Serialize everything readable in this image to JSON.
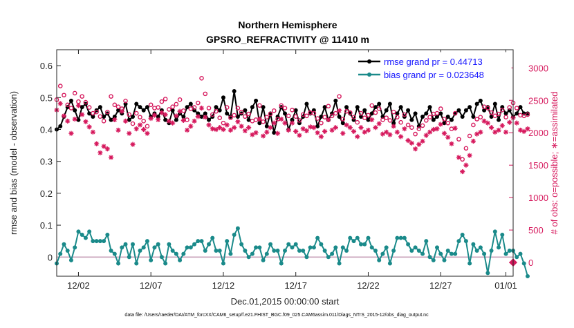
{
  "chart_data": {
    "type": "line",
    "title": "Northern Hemisphere",
    "subtitle": "GPSRO_REFRACTIVITY @ 11410 m",
    "xlabel": "Dec.01,2015 00:00:00 start",
    "ylabel": "rmse and bias (model - observation)",
    "y2label": "# of obs: o=possible; ∗=assimilated",
    "xlim": [
      0,
      31.5
    ],
    "ylim": [
      -0.06,
      0.65
    ],
    "y2lim": [
      -212,
      3280
    ],
    "x_ticks": [
      1.5,
      6.5,
      11.5,
      16.5,
      21.5,
      26.5,
      31.0
    ],
    "x_tick_labels": [
      "12/02",
      "12/07",
      "12/12",
      "12/17",
      "12/22",
      "12/27",
      "01/01"
    ],
    "y_ticks": [
      0,
      0.1,
      0.2,
      0.3,
      0.4,
      0.5,
      0.6
    ],
    "y_tick_labels": [
      "0",
      "0.1",
      "0.2",
      "0.3",
      "0.4",
      "0.5",
      "0.6"
    ],
    "y2_ticks": [
      0,
      500,
      1000,
      1500,
      2000,
      2500,
      3000
    ],
    "y2_tick_labels": [
      "0",
      "500",
      "1000",
      "1500",
      "2000",
      "2500",
      "3000"
    ],
    "series": [
      {
        "name": "rmse grand pr = 0.44713",
        "axis": "left",
        "color": "#000000",
        "marker": "dot",
        "values": [
          0.4,
          0.41,
          0.44,
          0.47,
          0.49,
          0.46,
          0.43,
          0.47,
          0.48,
          0.45,
          0.44,
          0.46,
          0.47,
          0.44,
          0.45,
          0.43,
          0.44,
          0.46,
          0.45,
          0.48,
          0.43,
          0.44,
          0.48,
          0.47,
          0.46,
          0.47,
          0.44,
          0.45,
          0.44,
          0.46,
          0.43,
          0.42,
          0.46,
          0.43,
          0.45,
          0.44,
          0.47,
          0.48,
          0.46,
          0.45,
          0.44,
          0.45,
          0.43,
          0.44,
          0.47,
          0.46,
          0.5,
          0.45,
          0.44,
          0.52,
          0.44,
          0.45,
          0.46,
          0.43,
          0.47,
          0.49,
          0.42,
          0.47,
          0.41,
          0.45,
          0.39,
          0.44,
          0.47,
          0.45,
          0.4,
          0.43,
          0.46,
          0.42,
          0.44,
          0.48,
          0.45,
          0.46,
          0.41,
          0.44,
          0.47,
          0.43,
          0.45,
          0.49,
          0.44,
          0.42,
          0.47,
          0.45,
          0.43,
          0.47,
          0.44,
          0.46,
          0.43,
          0.45,
          0.47,
          0.48,
          0.44,
          0.46,
          0.48,
          0.42,
          0.45,
          0.47,
          0.44,
          0.46,
          0.43,
          0.45,
          0.41,
          0.44,
          0.45,
          0.47,
          0.43,
          0.44,
          0.45,
          0.42,
          0.44,
          0.43,
          0.45,
          0.46,
          0.44,
          0.46,
          0.47,
          0.44,
          0.48,
          0.49,
          0.46,
          0.47,
          0.44,
          0.48,
          0.43,
          0.47,
          0.45,
          0.46,
          0.44,
          0.45,
          0.47,
          0.45,
          0.45
        ],
        "x_start": 0.0,
        "x_step": 0.25
      },
      {
        "name": "bias grand pr = 0.023648",
        "axis": "left",
        "color": "#1a8a8a",
        "marker": "dot",
        "values": [
          -0.02,
          0.01,
          0.04,
          0.02,
          -0.01,
          0.03,
          0.08,
          0.07,
          0.06,
          0.08,
          0.05,
          0.05,
          0.05,
          0.05,
          0.07,
          0.02,
          0.01,
          -0.02,
          0.03,
          0.04,
          0.0,
          0.04,
          -0.02,
          0.02,
          0.03,
          0.05,
          -0.01,
          0.03,
          0.04,
          0.0,
          -0.02,
          0.04,
          0.02,
          0.01,
          -0.01,
          0.01,
          0.03,
          0.03,
          0.04,
          0.05,
          0.05,
          0.02,
          0.04,
          0.06,
          0.02,
          0.02,
          -0.02,
          0.05,
          0.01,
          0.07,
          0.09,
          0.04,
          0.02,
          0.0,
          0.01,
          0.03,
          0.03,
          -0.01,
          0.01,
          0.04,
          0.02,
          0.02,
          -0.02,
          0.02,
          0.04,
          0.03,
          0.04,
          0.02,
          0.02,
          0.0,
          0.03,
          0.03,
          0.06,
          0.04,
          0.02,
          0.0,
          0.01,
          0.03,
          -0.02,
          0.03,
          0.02,
          0.06,
          0.05,
          0.06,
          0.04,
          0.04,
          0.06,
          0.03,
          0.02,
          -0.01,
          0.01,
          0.03,
          -0.02,
          0.02,
          0.06,
          0.06,
          0.06,
          0.04,
          0.02,
          0.03,
          0.02,
          0.01,
          0.05,
          0.0,
          -0.01,
          0.03,
          0.01,
          -0.01,
          0.02,
          0.01,
          0.01,
          0.05,
          0.07,
          0.05,
          -0.02,
          0.04,
          0.02,
          0.03,
          0.01,
          -0.05,
          0.02,
          0.08,
          0.03,
          0.07,
          0.01,
          0.02,
          0.02,
          0.0,
          0.01,
          -0.02,
          -0.06
        ],
        "x_start": 0.0,
        "x_step": 0.25
      },
      {
        "name": "possible",
        "axis": "right",
        "color": "#d6195d",
        "marker": "circle",
        "values": [
          2510,
          2720,
          2580,
          2430,
          2380,
          2610,
          2480,
          2560,
          2470,
          2390,
          2300,
          2320,
          2250,
          2180,
          2320,
          2560,
          2430,
          2400,
          2370,
          2490,
          2280,
          2140,
          2300,
          2240,
          2180,
          2100,
          2430,
          2380,
          2390,
          2480,
          2520,
          2360,
          2400,
          2440,
          2510,
          2340,
          2200,
          2370,
          2390,
          2460,
          2840,
          2600,
          2380,
          2280,
          2330,
          2230,
          2150,
          2390,
          2230,
          2270,
          2380,
          2320,
          2250,
          2290,
          2180,
          2200,
          2420,
          2170,
          2240,
          2290,
          2340,
          2210,
          2420,
          2380,
          2260,
          2350,
          2250,
          2190,
          2280,
          2260,
          2310,
          2300,
          2220,
          2150,
          2240,
          2410,
          2260,
          2300,
          2560,
          2210,
          2330,
          2310,
          2240,
          2160,
          2300,
          2230,
          2270,
          2420,
          2310,
          2370,
          2200,
          2230,
          2190,
          2320,
          2240,
          2160,
          2280,
          2120,
          2080,
          1980,
          2060,
          2110,
          2190,
          2240,
          2290,
          2300,
          2370,
          2210,
          2150,
          2060,
          2300,
          1900,
          1590,
          1760,
          1950,
          2120,
          2210,
          2240,
          2400,
          2380,
          2310,
          2260,
          2290,
          2350,
          2240,
          2390,
          2460,
          2380,
          2270,
          2260,
          2280
        ],
        "x_start": 0.0,
        "x_step": 0.25
      },
      {
        "name": "assimilated",
        "axis": "right",
        "color": "#d6195d",
        "marker": "star",
        "values": [
          2350,
          2450,
          2260,
          2180,
          1990,
          2210,
          2420,
          2280,
          2170,
          2090,
          2010,
          1830,
          1690,
          1790,
          1750,
          1620,
          2200,
          2040,
          2330,
          2180,
          1990,
          1820,
          2060,
          2120,
          2050,
          1990,
          2220,
          2270,
          2200,
          2310,
          2280,
          2180,
          2150,
          2260,
          2330,
          2190,
          2040,
          2100,
          2180,
          2250,
          2380,
          2240,
          2120,
          2060,
          2050,
          2080,
          2050,
          2120,
          2040,
          2080,
          2170,
          2100,
          2030,
          2080,
          1970,
          2000,
          2210,
          1950,
          2010,
          2080,
          2150,
          1990,
          2210,
          2150,
          2040,
          2150,
          2020,
          1960,
          2060,
          2030,
          2090,
          2080,
          2000,
          1940,
          2020,
          2200,
          2040,
          2080,
          2340,
          1990,
          2120,
          2080,
          2020,
          1940,
          2080,
          2010,
          2040,
          2200,
          2080,
          2140,
          1980,
          2010,
          1970,
          2100,
          2010,
          1940,
          2060,
          1880,
          1840,
          1750,
          1820,
          1870,
          1960,
          2010,
          2050,
          2060,
          2130,
          1990,
          1930,
          1830,
          2070,
          1620,
          1400,
          1500,
          1650,
          1870,
          1980,
          2010,
          2180,
          2150,
          2080,
          2010,
          2040,
          2110,
          2010,
          2160,
          2230,
          2150,
          2040,
          2020,
          2060
        ],
        "x_start": 0.0,
        "x_step": 0.25
      }
    ],
    "zero_line": true,
    "right_axis_marker_at_zero": true,
    "legend_position": "top-right",
    "legend": [
      "rmse grand pr = 0.44713",
      "bias grand pr = 0.023648"
    ]
  },
  "footnote": "data file: /Users/raeder/DAI/ATM_forcXX/CAM6_setup/f.e21.FHIST_BGC.f09_025.CAM6assim.011/Diags_NTrS_2015-12/obs_diag_output.nc",
  "colors": {
    "rmse": "#000000",
    "bias": "#1a8a8a",
    "obs": "#d6195d",
    "zero": "#c8a0b8"
  }
}
